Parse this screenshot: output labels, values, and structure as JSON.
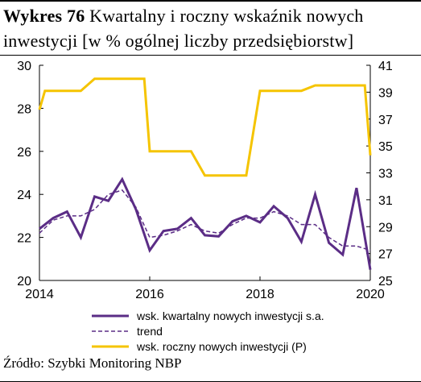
{
  "figure": {
    "label": "Wykres 76",
    "title": "Kwartalny i roczny wskaźnik nowych inwestycji [w % ogólnej liczby przedsiębiorstw]",
    "source": "Źródło: Szybki Monitoring NBP"
  },
  "chart_data": {
    "type": "line",
    "x_ticks": [
      "2014",
      "2016",
      "2018",
      "2020"
    ],
    "y_left": {
      "ticks": [
        "20",
        "22",
        "24",
        "26",
        "28",
        "30"
      ],
      "range": [
        20,
        30
      ]
    },
    "y_right": {
      "ticks": [
        "25",
        "27",
        "29",
        "31",
        "33",
        "35",
        "37",
        "39",
        "41"
      ],
      "range": [
        25,
        41
      ]
    },
    "x_range": [
      2014.0,
      2020.0
    ],
    "grid": false,
    "legend_position": "bottom",
    "series": [
      {
        "name": "wsk. kwartalny nowych inwestycji s.a.",
        "axis": "left",
        "color": "#5b2d86",
        "style": "solid",
        "x": [
          2014.0,
          2014.25,
          2014.5,
          2014.75,
          2015.0,
          2015.25,
          2015.5,
          2015.75,
          2016.0,
          2016.25,
          2016.5,
          2016.75,
          2017.0,
          2017.25,
          2017.5,
          2017.75,
          2018.0,
          2018.25,
          2018.5,
          2018.75,
          2019.0,
          2019.25,
          2019.5,
          2019.75,
          2020.0
        ],
        "values": [
          22.4,
          22.9,
          23.2,
          22.0,
          23.9,
          23.7,
          24.7,
          23.3,
          21.4,
          22.3,
          22.4,
          22.9,
          22.1,
          22.05,
          22.75,
          23.0,
          22.7,
          23.45,
          22.9,
          21.8,
          24.0,
          21.75,
          21.2,
          24.3,
          20.5
        ]
      },
      {
        "name": "trend",
        "axis": "left",
        "color": "#5b2d86",
        "style": "dashed",
        "x": [
          2014.0,
          2014.25,
          2014.5,
          2014.75,
          2015.0,
          2015.25,
          2015.5,
          2015.75,
          2016.0,
          2016.25,
          2016.5,
          2016.75,
          2017.0,
          2017.25,
          2017.5,
          2017.75,
          2018.0,
          2018.25,
          2018.5,
          2018.75,
          2019.0,
          2019.25,
          2019.5,
          2019.75,
          2020.0
        ],
        "values": [
          22.2,
          22.8,
          23.0,
          23.0,
          23.3,
          24.0,
          24.2,
          23.4,
          22.0,
          22.1,
          22.3,
          22.6,
          22.3,
          22.2,
          22.6,
          22.9,
          22.9,
          23.2,
          23.0,
          22.6,
          22.6,
          22.0,
          21.6,
          21.6,
          21.4
        ]
      },
      {
        "name": "wsk. roczny nowych inwestycji  (P)",
        "axis": "right",
        "color": "#f5c400",
        "style": "solid",
        "x": [
          2014.0,
          2014.1,
          2014.75,
          2015.0,
          2015.9,
          2016.0,
          2016.75,
          2017.0,
          2017.75,
          2018.0,
          2018.75,
          2019.0,
          2019.9,
          2020.0
        ],
        "values": [
          37.7,
          39.1,
          39.1,
          40.0,
          40.0,
          34.6,
          34.6,
          32.8,
          32.8,
          39.1,
          39.1,
          39.5,
          39.5,
          34.3
        ]
      }
    ]
  }
}
